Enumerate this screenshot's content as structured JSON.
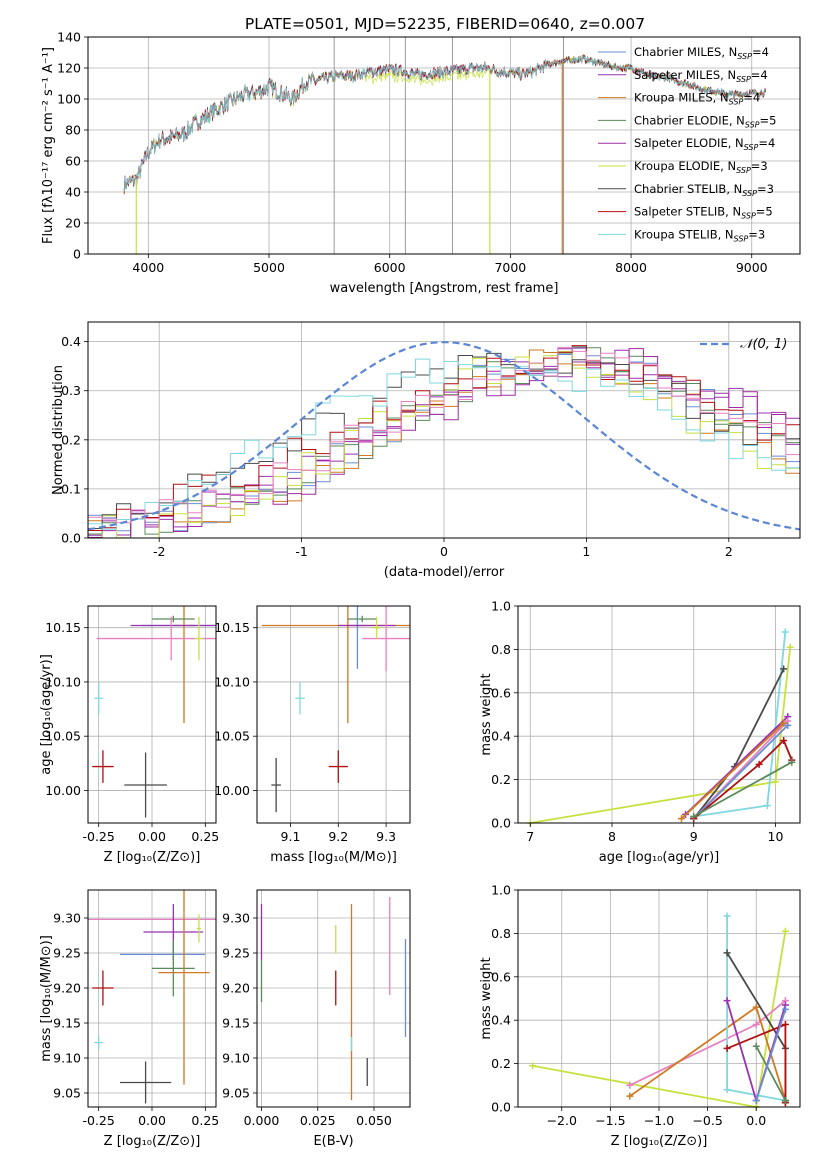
{
  "title": "PLATE=0501, MJD=52235, FIBERID=0640, z=0.007",
  "colors": {
    "chabrier_miles": "#6a8ed4",
    "salpeter_miles": "#9b30b0",
    "kroupa_miles": "#d07a20",
    "chabrier_elodie": "#5a8a5a",
    "salpeter_elodie": "#a02aa0",
    "kroupa_elodie": "#c8e040",
    "chabrier_stelib": "#4a4a4a",
    "salpeter_stelib": "#b01010",
    "kroupa_stelib": "#7fd8e0",
    "normal_curve": "#5b86d6",
    "pink": "#e880c0"
  },
  "chart_data": [
    {
      "id": "spectrum",
      "type": "line",
      "xlabel": "wavelength [Angstrom, rest frame]",
      "ylabel": "Flux [fλ10⁻¹⁷ erg cm⁻² s⁻¹ A⁻¹]",
      "xlim": [
        3500,
        9400
      ],
      "ylim": [
        0,
        140
      ],
      "xticks": [
        4000,
        5000,
        6000,
        7000,
        8000,
        9000
      ],
      "yticks": [
        0,
        20,
        40,
        60,
        80,
        100,
        120,
        140
      ],
      "legend_position": "top-right",
      "legend": [
        {
          "label": "Chabrier MILES, N",
          "sub": "SSP",
          "n": "=4",
          "color": "#6a8ed4"
        },
        {
          "label": "Salpeter MILES, N",
          "sub": "SSP",
          "n": "=4",
          "color": "#9b30b0"
        },
        {
          "label": "Kroupa MILES, N",
          "sub": "SSP",
          "n": "=4",
          "color": "#d07a20"
        },
        {
          "label": "Chabrier ELODIE, N",
          "sub": "SSP",
          "n": "=5",
          "color": "#5a8a5a"
        },
        {
          "label": "Salpeter ELODIE, N",
          "sub": "SSP",
          "n": "=4",
          "color": "#a02aa0"
        },
        {
          "label": "Kroupa ELODIE, N",
          "sub": "SSP",
          "n": "=3",
          "color": "#c8e040"
        },
        {
          "label": "Chabrier STELIB, N",
          "sub": "SSP",
          "n": "=3",
          "color": "#4a4a4a"
        },
        {
          "label": "Salpeter STELIB, N",
          "sub": "SSP",
          "n": "=5",
          "color": "#b01010"
        },
        {
          "label": "Kroupa STELIB, N",
          "sub": "SSP",
          "n": "=3",
          "color": "#7fd8e0"
        }
      ],
      "continuum": [
        [
          3800,
          45
        ],
        [
          3900,
          48
        ],
        [
          4000,
          66
        ],
        [
          4100,
          74
        ],
        [
          4200,
          75
        ],
        [
          4300,
          78
        ],
        [
          4400,
          85
        ],
        [
          4500,
          90
        ],
        [
          4600,
          95
        ],
        [
          4700,
          99
        ],
        [
          4800,
          103
        ],
        [
          4900,
          104
        ],
        [
          5000,
          108
        ],
        [
          5100,
          104
        ],
        [
          5200,
          100
        ],
        [
          5300,
          111
        ],
        [
          5400,
          112
        ],
        [
          5500,
          114
        ],
        [
          5600,
          115
        ],
        [
          5700,
          115
        ],
        [
          5800,
          117
        ],
        [
          5900,
          118
        ],
        [
          6000,
          119
        ],
        [
          6100,
          118
        ],
        [
          6200,
          116
        ],
        [
          6300,
          116
        ],
        [
          6400,
          117
        ],
        [
          6500,
          118
        ],
        [
          6600,
          119
        ],
        [
          6700,
          120
        ],
        [
          6800,
          120
        ],
        [
          6900,
          118
        ],
        [
          7000,
          117
        ],
        [
          7100,
          116
        ],
        [
          7200,
          118
        ],
        [
          7300,
          122
        ],
        [
          7400,
          124
        ],
        [
          7500,
          125
        ],
        [
          7600,
          126
        ],
        [
          7700,
          124
        ],
        [
          7800,
          122
        ],
        [
          7900,
          120
        ],
        [
          8000,
          120
        ],
        [
          8100,
          117
        ],
        [
          8200,
          114
        ],
        [
          8300,
          114
        ],
        [
          8400,
          111
        ],
        [
          8500,
          109
        ],
        [
          8600,
          106
        ],
        [
          8700,
          105
        ],
        [
          8800,
          103
        ],
        [
          8900,
          103
        ],
        [
          9000,
          104
        ],
        [
          9100,
          104
        ]
      ],
      "verticals": [
        5540,
        6130,
        6520,
        7440
      ],
      "drops": [
        {
          "x": 3900,
          "to": 0
        },
        {
          "x": 6830,
          "to": 0
        },
        {
          "x": 7430,
          "to": 0
        }
      ]
    },
    {
      "id": "residuals",
      "type": "line",
      "xlabel": "(data-model)/error",
      "ylabel": "Normed distribution",
      "xlim": [
        -2.5,
        2.5
      ],
      "ylim": [
        0,
        0.44
      ],
      "xticks": [
        -2,
        -1,
        0,
        1,
        2
      ],
      "yticks": [
        0.0,
        0.1,
        0.2,
        0.3,
        0.4
      ],
      "ytick_labels": [
        "0.0",
        "0.1",
        "0.2",
        "0.3",
        "0.4"
      ],
      "legend_label": "𝒩(0, 1)",
      "legend_position": "top-right"
    },
    {
      "id": "age_vs_Z",
      "type": "scatter",
      "xlabel": "Z [log₁₀(Z/Z⊙)]",
      "ylabel": "age  [log₁₀(age/yr)]",
      "xlim": [
        -0.3,
        0.3
      ],
      "ylim": [
        9.97,
        10.17
      ],
      "xticks": [
        -0.25,
        0.0,
        0.25
      ],
      "xtick_labels": [
        "-0.25",
        "0.00",
        "0.25"
      ],
      "yticks": [
        10.0,
        10.05,
        10.1,
        10.15
      ],
      "ytick_labels": [
        "10.00",
        "10.05",
        "10.10",
        "10.15"
      ],
      "points": [
        {
          "x": 0.15,
          "y": 10.152,
          "ex": 0.2,
          "ey": 0.0,
          "color": "#6a8ed4"
        },
        {
          "x": 0.15,
          "y": 10.152,
          "ex": 0.05,
          "ey": 0.09,
          "color": "#d07a20"
        },
        {
          "x": 0.1,
          "y": 10.152,
          "ex": 0.2,
          "ey": 0.0,
          "color": "#9b30b0"
        },
        {
          "x": 0.1,
          "y": 10.158,
          "ex": 0.1,
          "ey": 0.003,
          "color": "#5a8a5a"
        },
        {
          "x": 0.09,
          "y": 10.14,
          "ex": 0.35,
          "ey": 0.02,
          "color": "#e880c0"
        },
        {
          "x": 0.22,
          "y": 10.14,
          "ex": 0.02,
          "ey": 0.02,
          "color": "#c8e040"
        },
        {
          "x": -0.25,
          "y": 10.085,
          "ex": 0.02,
          "ey": 0.015,
          "color": "#7fd8e0"
        },
        {
          "x": -0.23,
          "y": 10.022,
          "ex": 0.05,
          "ey": 0.015,
          "color": "#b01010"
        },
        {
          "x": -0.03,
          "y": 10.005,
          "ex": 0.1,
          "ey": 0.03,
          "color": "#4a4a4a"
        }
      ]
    },
    {
      "id": "age_vs_mass",
      "type": "scatter",
      "xlabel": "mass [log₁₀(M/M⊙)]",
      "xlim": [
        9.03,
        9.35
      ],
      "ylim": [
        9.97,
        10.17
      ],
      "xticks": [
        9.1,
        9.2,
        9.3
      ],
      "xtick_labels": [
        "9.1",
        "9.2",
        "9.3"
      ],
      "yticks": [
        10.0,
        10.05,
        10.1,
        10.15
      ],
      "ytick_labels": [
        "10.00",
        "10.05",
        "10.10",
        "10.15"
      ],
      "points": [
        {
          "x": 9.22,
          "y": 10.152,
          "ex": 0.18,
          "ey": 0.09,
          "color": "#d07a20"
        },
        {
          "x": 9.24,
          "y": 10.152,
          "ex": 0.02,
          "ey": 0.04,
          "color": "#6a8ed4"
        },
        {
          "x": 9.26,
          "y": 10.152,
          "ex": 0.06,
          "ey": 0.0,
          "color": "#9b30b0"
        },
        {
          "x": 9.25,
          "y": 10.158,
          "ex": 0.03,
          "ey": 0.003,
          "color": "#5a8a5a"
        },
        {
          "x": 9.3,
          "y": 10.14,
          "ex": 0.05,
          "ey": 0.03,
          "color": "#e880c0"
        },
        {
          "x": 9.28,
          "y": 10.15,
          "ex": 0.01,
          "ey": 0.01,
          "color": "#c8e040"
        },
        {
          "x": 9.12,
          "y": 10.085,
          "ex": 0.01,
          "ey": 0.015,
          "color": "#7fd8e0"
        },
        {
          "x": 9.2,
          "y": 10.022,
          "ex": 0.02,
          "ey": 0.015,
          "color": "#b01010"
        },
        {
          "x": 9.07,
          "y": 10.005,
          "ex": 0.01,
          "ey": 0.025,
          "color": "#4a4a4a"
        }
      ]
    },
    {
      "id": "weight_vs_age",
      "type": "line",
      "xlabel": "age  [log₁₀(age/yr)]",
      "ylabel": "mass weight",
      "xlim": [
        6.85,
        10.3
      ],
      "ylim": [
        0,
        1
      ],
      "xticks": [
        7,
        8,
        9,
        10
      ],
      "yticks": [
        0,
        0.2,
        0.4,
        0.6,
        0.8,
        1.0
      ],
      "ytick_labels": [
        "0.0",
        "0.2",
        "0.4",
        "0.6",
        "0.8",
        "1.0"
      ],
      "series": [
        {
          "color": "#c8e040",
          "points": [
            [
              7.0,
              0.0
            ],
            [
              10.0,
              0.19
            ],
            [
              10.18,
              0.81
            ]
          ]
        },
        {
          "color": "#7fd8e0",
          "points": [
            [
              9.0,
              0.03
            ],
            [
              9.9,
              0.08
            ],
            [
              10.12,
              0.88
            ]
          ]
        },
        {
          "color": "#4a4a4a",
          "points": [
            [
              9.0,
              0.02
            ],
            [
              9.5,
              0.26
            ],
            [
              10.1,
              0.71
            ]
          ]
        },
        {
          "color": "#9b30b0",
          "points": [
            [
              8.9,
              0.04
            ],
            [
              10.15,
              0.49
            ]
          ]
        },
        {
          "color": "#e880c0",
          "points": [
            [
              9.0,
              0.02
            ],
            [
              10.15,
              0.47
            ]
          ]
        },
        {
          "color": "#d07a20",
          "points": [
            [
              8.85,
              0.02
            ],
            [
              10.1,
              0.46
            ]
          ]
        },
        {
          "color": "#6a8ed4",
          "points": [
            [
              9.0,
              0.02
            ],
            [
              10.15,
              0.45
            ]
          ]
        },
        {
          "color": "#b01010",
          "points": [
            [
              9.0,
              0.02
            ],
            [
              9.8,
              0.27
            ],
            [
              10.1,
              0.38
            ],
            [
              10.2,
              0.29
            ]
          ]
        },
        {
          "color": "#5a8a5a",
          "points": [
            [
              9.0,
              0.03
            ],
            [
              10.2,
              0.28
            ]
          ]
        }
      ]
    },
    {
      "id": "mass_vs_Z",
      "type": "scatter",
      "xlabel": "Z [log₁₀(Z/Z⊙)]",
      "ylabel": "mass [log₁₀(M/M⊙)]",
      "xlim": [
        -0.3,
        0.3
      ],
      "ylim": [
        9.03,
        9.34
      ],
      "xticks": [
        -0.25,
        0.0,
        0.25
      ],
      "xtick_labels": [
        "-0.25",
        "0.00",
        "0.25"
      ],
      "yticks": [
        9.05,
        9.1,
        9.15,
        9.2,
        9.25,
        9.3
      ],
      "ytick_labels": [
        "9.05",
        "9.10",
        "9.15",
        "9.20",
        "9.25",
        "9.30"
      ],
      "points": [
        {
          "x": 0.0,
          "y": 9.298,
          "ex": 0.3,
          "ey": 0.0,
          "color": "#e880c0"
        },
        {
          "x": 0.1,
          "y": 9.28,
          "ex": 0.14,
          "ey": 0.04,
          "color": "#9b30b0"
        },
        {
          "x": 0.22,
          "y": 9.285,
          "ex": 0.01,
          "ey": 0.02,
          "color": "#c8e040"
        },
        {
          "x": 0.05,
          "y": 9.248,
          "ex": 0.2,
          "ey": 0.0,
          "color": "#6a8ed4"
        },
        {
          "x": 0.1,
          "y": 9.228,
          "ex": 0.1,
          "ey": 0.04,
          "color": "#5a8a5a"
        },
        {
          "x": 0.15,
          "y": 9.222,
          "ex": 0.12,
          "ey": 0.16,
          "color": "#d07a20"
        },
        {
          "x": -0.23,
          "y": 9.2,
          "ex": 0.05,
          "ey": 0.025,
          "color": "#b01010"
        },
        {
          "x": -0.25,
          "y": 9.122,
          "ex": 0.02,
          "ey": 0.01,
          "color": "#7fd8e0"
        },
        {
          "x": -0.03,
          "y": 9.065,
          "ex": 0.12,
          "ey": 0.03,
          "color": "#4a4a4a"
        }
      ]
    },
    {
      "id": "mass_vs_ebv",
      "type": "scatter",
      "xlabel": "E(B-V)",
      "xlim": [
        -0.002,
        0.066
      ],
      "ylim": [
        9.03,
        9.34
      ],
      "xticks": [
        0.0,
        0.025,
        0.05
      ],
      "xtick_labels": [
        "0.000",
        "0.025",
        "0.050"
      ],
      "yticks": [
        9.05,
        9.1,
        9.15,
        9.2,
        9.25,
        9.3
      ],
      "ytick_labels": [
        "9.05",
        "9.10",
        "9.15",
        "9.20",
        "9.25",
        "9.30"
      ],
      "points": [
        {
          "x": 0.0,
          "y": 9.28,
          "ex": 0.0,
          "ey": 0.04,
          "color": "#9b30b0"
        },
        {
          "x": 0.0,
          "y": 9.21,
          "ex": 0.0,
          "ey": 0.03,
          "color": "#5a8a5a"
        },
        {
          "x": 0.033,
          "y": 9.27,
          "ex": 0.0,
          "ey": 0.02,
          "color": "#c8e040"
        },
        {
          "x": 0.033,
          "y": 9.2,
          "ex": 0.0,
          "ey": 0.025,
          "color": "#b01010"
        },
        {
          "x": 0.04,
          "y": 9.18,
          "ex": 0.0,
          "ey": 0.14,
          "color": "#d07a20"
        },
        {
          "x": 0.04,
          "y": 9.12,
          "ex": 0.0,
          "ey": 0.01,
          "color": "#7fd8e0"
        },
        {
          "x": 0.047,
          "y": 9.08,
          "ex": 0.0,
          "ey": 0.02,
          "color": "#4a4a4a"
        },
        {
          "x": 0.057,
          "y": 9.26,
          "ex": 0.0,
          "ey": 0.07,
          "color": "#e880c0"
        },
        {
          "x": 0.064,
          "y": 9.2,
          "ex": 0.0,
          "ey": 0.07,
          "color": "#6a8ed4"
        }
      ]
    },
    {
      "id": "weight_vs_Z",
      "type": "line",
      "xlabel": "Z [log₁₀(Z/Z⊙)]",
      "ylabel": "mass weight",
      "xlim": [
        -2.45,
        0.45
      ],
      "ylim": [
        0,
        1
      ],
      "xticks": [
        -2.0,
        -1.5,
        -1.0,
        -0.5,
        0.0
      ],
      "xtick_labels": [
        "−2.0",
        "−1.5",
        "−1.0",
        "−0.5",
        "0.0"
      ],
      "yticks": [
        0,
        0.2,
        0.4,
        0.6,
        0.8,
        1.0
      ],
      "ytick_labels": [
        "0.0",
        "0.2",
        "0.4",
        "0.6",
        "0.8",
        "1.0"
      ],
      "series": [
        {
          "color": "#c8e040",
          "points": [
            [
              -2.3,
              0.19
            ],
            [
              0.0,
              0.0
            ],
            [
              0.3,
              0.81
            ]
          ]
        },
        {
          "color": "#e880c0",
          "points": [
            [
              -1.3,
              0.1
            ],
            [
              0.0,
              0.38
            ],
            [
              0.3,
              0.49
            ]
          ]
        },
        {
          "color": "#d07a20",
          "points": [
            [
              -1.3,
              0.05
            ],
            [
              0.0,
              0.46
            ],
            [
              0.3,
              0.03
            ]
          ]
        },
        {
          "color": "#7fd8e0",
          "points": [
            [
              -0.3,
              0.88
            ],
            [
              -0.3,
              0.08
            ],
            [
              0.3,
              0.03
            ]
          ]
        },
        {
          "color": "#4a4a4a",
          "points": [
            [
              -0.3,
              0.71
            ],
            [
              0.3,
              0.27
            ],
            [
              0.3,
              0.02
            ]
          ]
        },
        {
          "color": "#9b30b0",
          "points": [
            [
              -0.3,
              0.49
            ],
            [
              0.0,
              0.03
            ],
            [
              0.3,
              0.47
            ]
          ]
        },
        {
          "color": "#b01010",
          "points": [
            [
              -0.3,
              0.27
            ],
            [
              0.3,
              0.38
            ],
            [
              0.3,
              0.02
            ]
          ]
        },
        {
          "color": "#5a8a5a",
          "points": [
            [
              0.0,
              0.28
            ],
            [
              0.3,
              0.03
            ]
          ]
        },
        {
          "color": "#6a8ed4",
          "points": [
            [
              0.0,
              0.03
            ],
            [
              0.3,
              0.45
            ]
          ]
        }
      ]
    }
  ]
}
